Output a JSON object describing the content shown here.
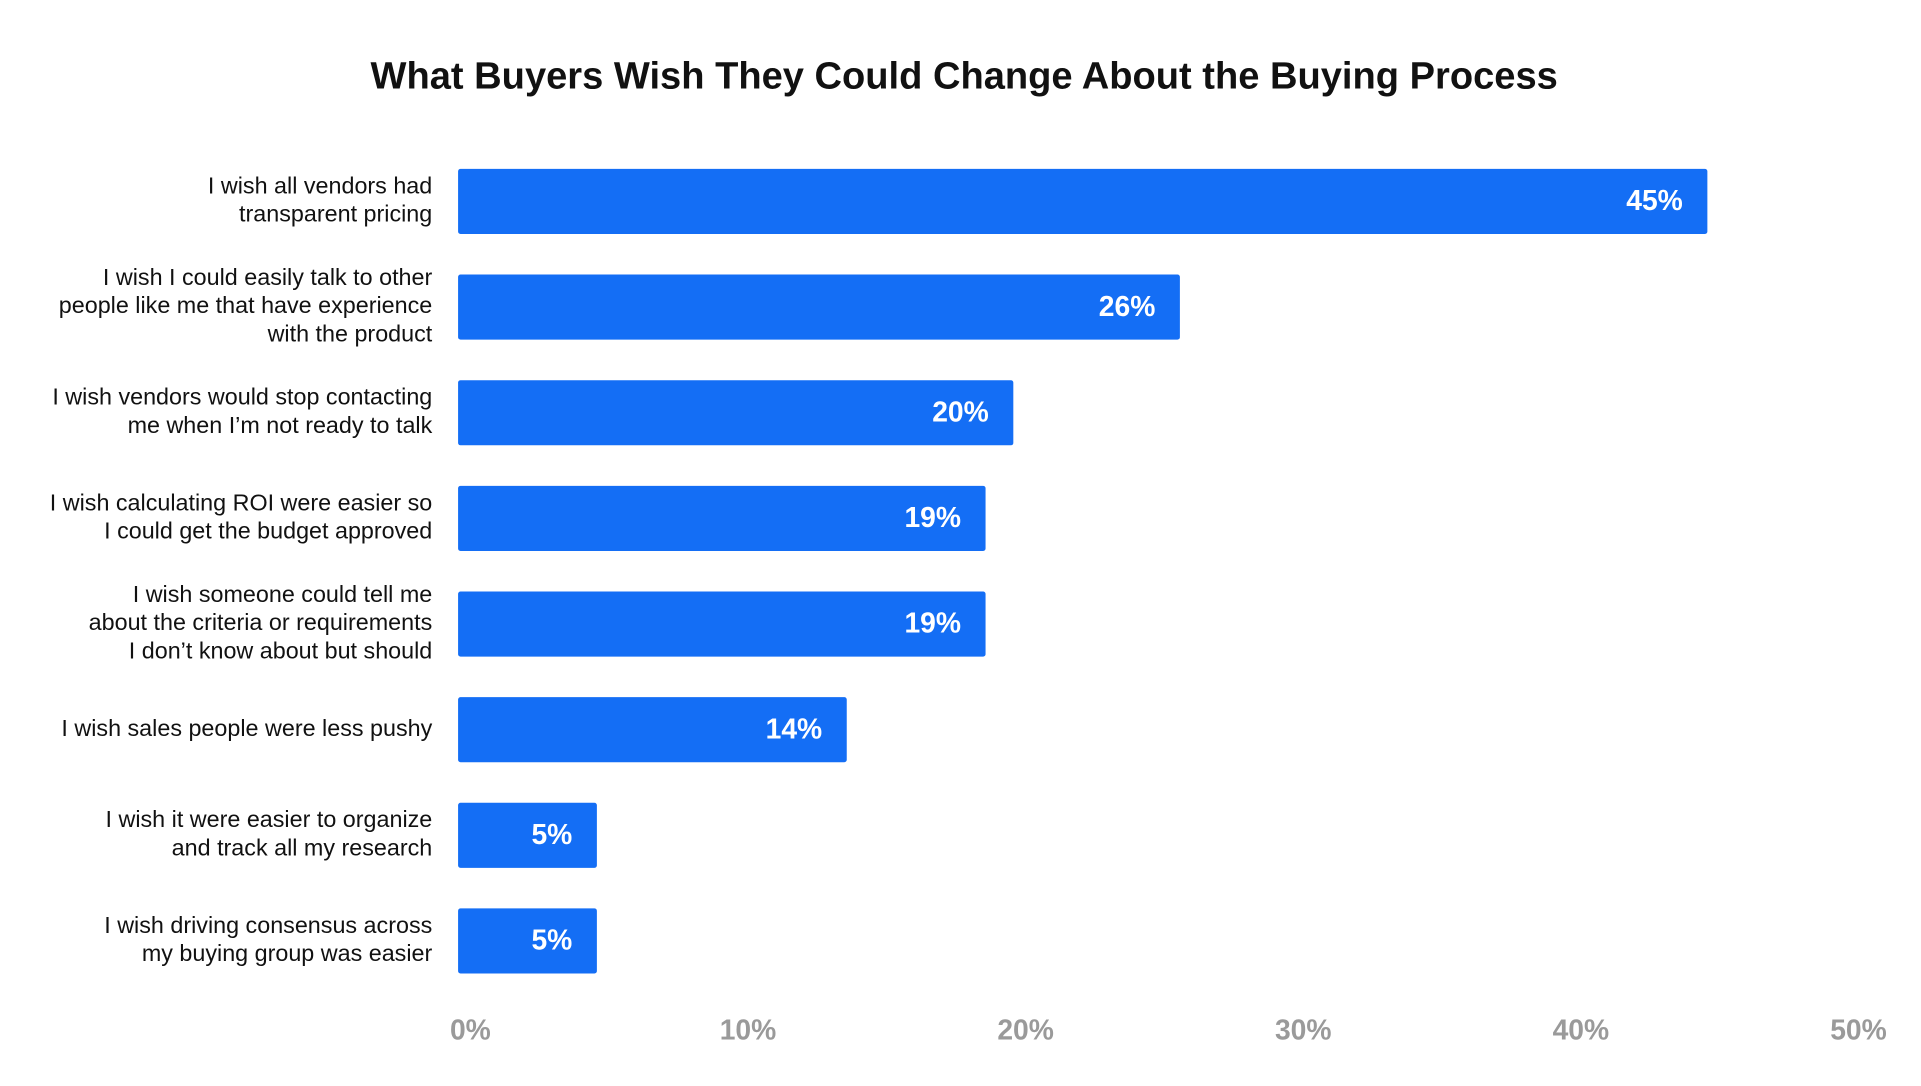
{
  "chart_data": {
    "type": "bar",
    "orientation": "horizontal",
    "title": "What Buyers Wish They Could Change About the Buying Process",
    "categories": [
      "I wish all vendors had\ntransparent pricing",
      "I wish I could easily talk to other\npeople like me that have experience\nwith the product",
      "I wish vendors would stop contacting\nme when I’m not ready to talk",
      "I wish calculating ROI were easier so\nI could get the budget approved",
      "I wish someone could tell me\nabout the criteria or requirements\nI don’t know about but should",
      "I wish sales people were less pushy",
      "I wish it were easier to organize\nand track all my research",
      "I wish driving consensus across\nmy buying group was easier"
    ],
    "values": [
      45,
      26,
      20,
      19,
      19,
      14,
      5,
      5
    ],
    "value_labels": [
      "45%",
      "26%",
      "20%",
      "19%",
      "19%",
      "14%",
      "5%",
      "5%"
    ],
    "color": "#146ef5",
    "xlim": [
      0,
      50
    ],
    "xticks": [
      {
        "value": 0,
        "label": "0%"
      },
      {
        "value": 10,
        "label": "10%"
      },
      {
        "value": 20,
        "label": "20%"
      },
      {
        "value": 30,
        "label": "30%"
      },
      {
        "value": 40,
        "label": "40%"
      },
      {
        "value": 50,
        "label": "50%"
      }
    ],
    "grid": false
  }
}
